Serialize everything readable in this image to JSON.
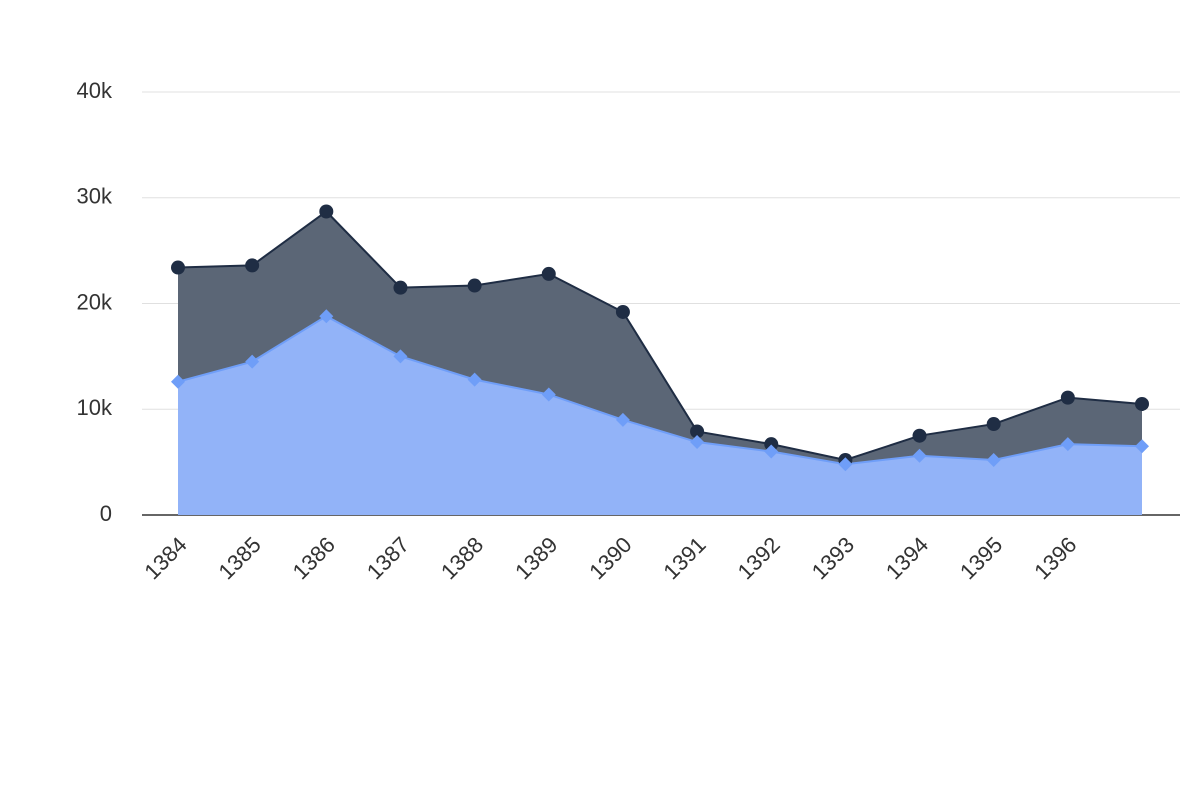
{
  "chart_data": {
    "type": "area",
    "categories": [
      "1384",
      "1385",
      "1386",
      "1387",
      "1388",
      "1389",
      "1390",
      "1391",
      "1392",
      "1393",
      "1394",
      "1395",
      "1396",
      null
    ],
    "series": [
      {
        "color": "#1f2d44",
        "fill": "#5b6676",
        "marker": "circle",
        "values": [
          23400,
          23600,
          28700,
          21500,
          21700,
          22800,
          19200,
          7900,
          6700,
          5200,
          7500,
          8600,
          11100,
          10500
        ]
      },
      {
        "color": "#6f9ef8",
        "fill": "#93b5fb",
        "marker": "diamond",
        "values": [
          12600,
          14500,
          18800,
          15000,
          12800,
          11400,
          9000,
          6900,
          6000,
          4800,
          5600,
          5200,
          6700,
          6500
        ]
      }
    ],
    "ylim": [
      0,
      40000
    ],
    "yticks": [
      0,
      {
        "value": 10000,
        "label": "10k"
      },
      {
        "value": 20000,
        "label": "20k"
      },
      {
        "value": 30000,
        "label": "30k"
      },
      {
        "value": 40000,
        "label": "40k"
      }
    ],
    "grid": true
  }
}
